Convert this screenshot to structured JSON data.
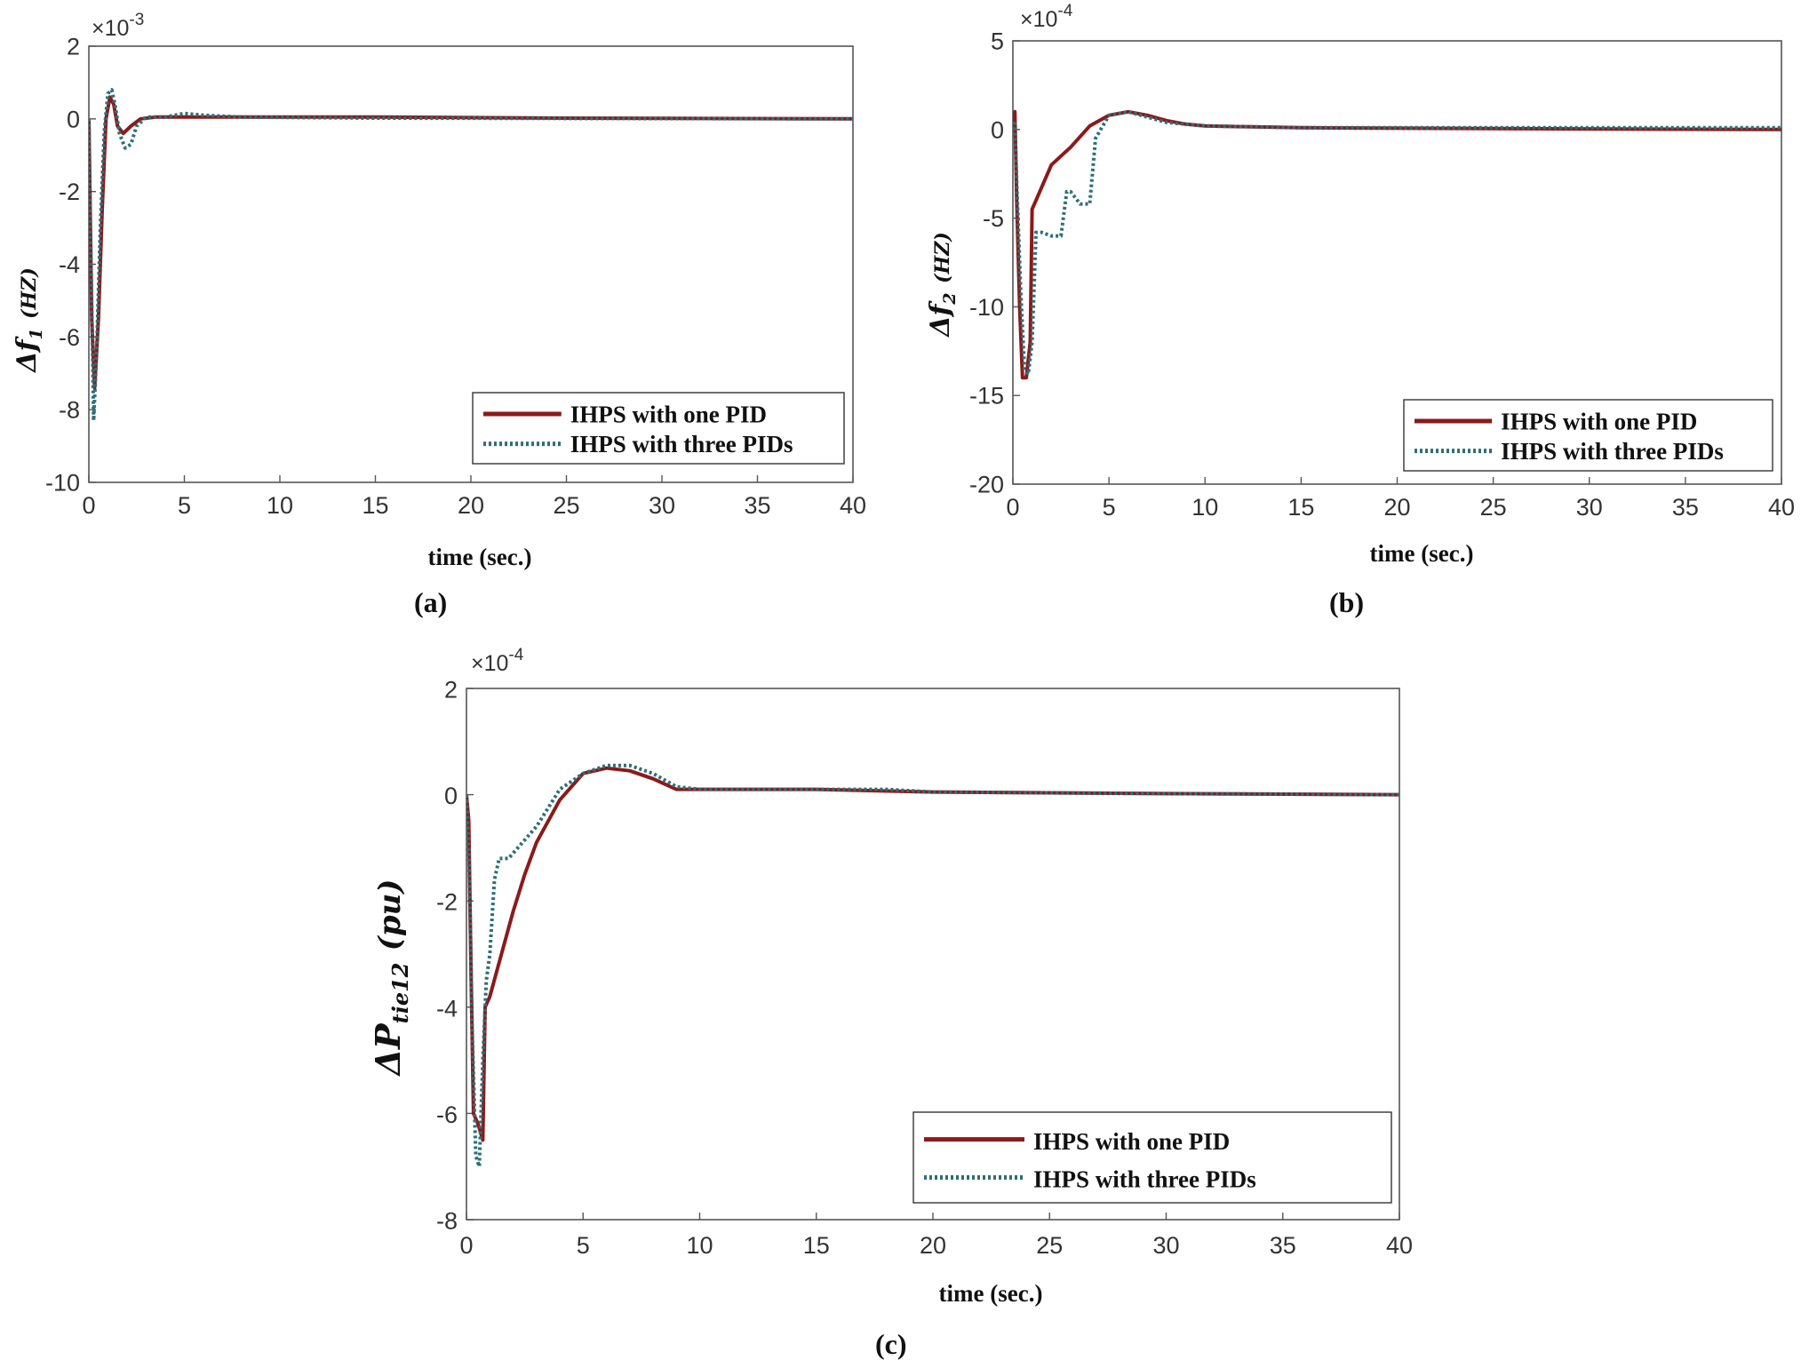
{
  "figure": {
    "captions": [
      "(a)",
      "(b)",
      "(c)"
    ]
  },
  "colors": {
    "one_pid": "#8b1a1a",
    "three_pids": "#2b6f7a",
    "axis": "#555555"
  },
  "chart_data": [
    {
      "type": "line",
      "panel": "a",
      "title": "",
      "xlabel": "time (sec.)",
      "ylabel_symbol": "Δf",
      "ylabel_sub": "1",
      "ylabel_unit": "(HZ)",
      "y_exponent_base": "×10",
      "y_exponent": "-3",
      "xlim": [
        0,
        40
      ],
      "ylim": [
        -10,
        2
      ],
      "xticks": [
        "0",
        "5",
        "10",
        "15",
        "20",
        "25",
        "30",
        "35",
        "40"
      ],
      "yticks": [
        "2",
        "0",
        "-2",
        "-4",
        "-6",
        "-8",
        "-10"
      ],
      "legend_position": "bottom-right",
      "series": [
        {
          "name": "IHPS with one PID",
          "style": "solid",
          "x": [
            0,
            0.15,
            0.3,
            0.5,
            0.7,
            0.9,
            1.1,
            1.3,
            1.5,
            1.8,
            2.2,
            2.7,
            3.5,
            5,
            8,
            15,
            25,
            40
          ],
          "y": [
            0,
            -5.5,
            -7.4,
            -5.5,
            -2.5,
            0,
            0.6,
            0.4,
            -0.2,
            -0.4,
            -0.2,
            0,
            0.05,
            0.05,
            0.05,
            0.05,
            0.02,
            0
          ]
        },
        {
          "name": "IHPS with three PIDs",
          "style": "dotted",
          "x": [
            0,
            0.1,
            0.25,
            0.4,
            0.6,
            0.8,
            1.0,
            1.2,
            1.4,
            1.6,
            1.9,
            2.2,
            2.5,
            3.0,
            4,
            5,
            6,
            8,
            15,
            40
          ],
          "y": [
            0,
            -3.5,
            -8.3,
            -6.5,
            -3.0,
            -0.4,
            0.7,
            0.8,
            0.3,
            -0.4,
            -0.8,
            -0.7,
            -0.2,
            0.05,
            0.05,
            0.15,
            0.1,
            0.05,
            0.02,
            0
          ]
        }
      ]
    },
    {
      "type": "line",
      "panel": "b",
      "title": "",
      "xlabel": "time (sec.)",
      "ylabel_symbol": "Δf",
      "ylabel_sub": "2",
      "ylabel_unit": "(HZ)",
      "y_exponent_base": "×10",
      "y_exponent": "-4",
      "xlim": [
        0,
        40
      ],
      "ylim": [
        -20,
        5
      ],
      "xticks": [
        "0",
        "5",
        "10",
        "15",
        "20",
        "25",
        "30",
        "35",
        "40"
      ],
      "yticks": [
        "5",
        "0",
        "-5",
        "-10",
        "-15",
        "-20"
      ],
      "legend_position": "bottom-right",
      "series": [
        {
          "name": "IHPS with one PID",
          "style": "solid",
          "x": [
            0,
            0.1,
            0.2,
            0.35,
            0.5,
            0.7,
            0.9,
            1.0,
            1.2,
            1.6,
            2.0,
            2.5,
            3.0,
            4.0,
            5.0,
            6.0,
            7.0,
            8.0,
            9.0,
            10,
            15,
            25,
            40
          ],
          "y": [
            0,
            1.0,
            -4.0,
            -10,
            -14,
            -14,
            -12,
            -4.5,
            -4.0,
            -3.0,
            -2.0,
            -1.5,
            -1.0,
            0.2,
            0.8,
            1.0,
            0.8,
            0.5,
            0.3,
            0.2,
            0.1,
            0.05,
            0
          ]
        },
        {
          "name": "IHPS with three PIDs",
          "style": "dotted",
          "x": [
            0,
            0.1,
            0.2,
            0.4,
            0.6,
            0.8,
            1.0,
            1.2,
            1.5,
            2.0,
            2.5,
            2.8,
            3.0,
            3.5,
            4.0,
            4.3,
            5,
            6,
            7,
            8,
            10,
            15,
            25,
            40
          ],
          "y": [
            0,
            0.5,
            -3.0,
            -9.0,
            -13.5,
            -13.8,
            -12,
            -5.8,
            -5.8,
            -6.0,
            -6.0,
            -3.5,
            -3.5,
            -4.2,
            -4.2,
            -0.5,
            0.8,
            1.0,
            0.7,
            0.4,
            0.2,
            0.1,
            0.1,
            0.1
          ]
        }
      ]
    },
    {
      "type": "line",
      "panel": "c",
      "title": "",
      "xlabel": "time (sec.)",
      "ylabel_symbol": "ΔP",
      "ylabel_sub": "tie12",
      "ylabel_unit": "(pu)",
      "y_exponent_base": "×10",
      "y_exponent": "-4",
      "xlim": [
        0,
        40
      ],
      "ylim": [
        -8,
        2
      ],
      "xticks": [
        "0",
        "5",
        "10",
        "15",
        "20",
        "25",
        "30",
        "35",
        "40"
      ],
      "yticks": [
        "2",
        "0",
        "-2",
        "-4",
        "-6",
        "-8"
      ],
      "legend_position": "bottom-right",
      "series": [
        {
          "name": "IHPS with one PID",
          "style": "solid",
          "x": [
            0,
            0.1,
            0.2,
            0.3,
            0.5,
            0.7,
            0.8,
            1.0,
            1.5,
            2.0,
            2.5,
            3.0,
            4.0,
            5.0,
            6.0,
            7.0,
            8.0,
            9.0,
            10,
            15,
            20,
            30,
            40
          ],
          "y": [
            0,
            -0.5,
            -3.5,
            -6.0,
            -6.2,
            -6.5,
            -4.0,
            -3.8,
            -3.0,
            -2.2,
            -1.5,
            -0.9,
            -0.1,
            0.4,
            0.5,
            0.45,
            0.3,
            0.1,
            0.1,
            0.1,
            0.05,
            0.02,
            0
          ]
        },
        {
          "name": "IHPS with three PIDs",
          "style": "dotted",
          "x": [
            0,
            0.1,
            0.25,
            0.4,
            0.55,
            0.7,
            0.85,
            1.0,
            1.2,
            1.4,
            1.8,
            2.2,
            3.0,
            4.0,
            5.0,
            6.0,
            7.0,
            8.0,
            9.0,
            10,
            15,
            18,
            20,
            30,
            40
          ],
          "y": [
            0,
            -1.0,
            -4.5,
            -6.8,
            -7.0,
            -5.0,
            -3.5,
            -3.0,
            -1.6,
            -1.2,
            -1.2,
            -1.0,
            -0.6,
            0.1,
            0.4,
            0.55,
            0.55,
            0.4,
            0.15,
            0.1,
            0.1,
            0.1,
            0.05,
            0.02,
            0
          ]
        }
      ]
    }
  ]
}
